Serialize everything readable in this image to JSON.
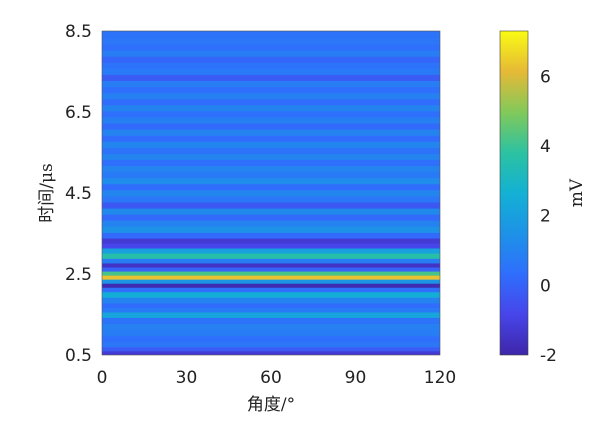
{
  "chart_data": {
    "type": "heatmap",
    "title": "",
    "xlabel": "角度/°",
    "ylabel": "时间/μs",
    "colorbar_label": "mV",
    "xlim": [
      0,
      120
    ],
    "ylim": [
      0.5,
      8.5
    ],
    "x_ticks": [
      "0",
      "30",
      "60",
      "90",
      "120"
    ],
    "x_tick_values": [
      0,
      30,
      60,
      90,
      120
    ],
    "y_ticks": [
      "0.5",
      "2.5",
      "4.5",
      "6.5",
      "8.5"
    ],
    "y_tick_values": [
      0.5,
      2.5,
      4.5,
      6.5,
      8.5
    ],
    "colorbar_ticks": [
      "-2",
      "0",
      "2",
      "4",
      "6"
    ],
    "colorbar_tick_values": [
      -2,
      0,
      2,
      4,
      6
    ],
    "colorbar_range": [
      -2,
      7.3
    ],
    "colormap": "parula",
    "grid": false,
    "bands": [
      {
        "t": 0.55,
        "mv": -1.2
      },
      {
        "t": 0.65,
        "mv": -0.2
      },
      {
        "t": 0.75,
        "mv": 0.6
      },
      {
        "t": 0.9,
        "mv": 0.4
      },
      {
        "t": 1.05,
        "mv": 0.8
      },
      {
        "t": 1.2,
        "mv": 0.9
      },
      {
        "t": 1.35,
        "mv": 0.5
      },
      {
        "t": 1.5,
        "mv": 2.2
      },
      {
        "t": 1.62,
        "mv": 0.7
      },
      {
        "t": 1.72,
        "mv": 0.3
      },
      {
        "t": 1.85,
        "mv": 1.0
      },
      {
        "t": 2.0,
        "mv": 2.5
      },
      {
        "t": 2.12,
        "mv": 0.4
      },
      {
        "t": 2.22,
        "mv": -1.8
      },
      {
        "t": 2.32,
        "mv": 1.6
      },
      {
        "t": 2.42,
        "mv": 6.3
      },
      {
        "t": 2.52,
        "mv": 4.2
      },
      {
        "t": 2.62,
        "mv": 0.0
      },
      {
        "t": 2.72,
        "mv": -1.5
      },
      {
        "t": 2.82,
        "mv": 0.8
      },
      {
        "t": 2.95,
        "mv": 3.6
      },
      {
        "t": 3.08,
        "mv": 2.0
      },
      {
        "t": 3.2,
        "mv": -0.8
      },
      {
        "t": 3.32,
        "mv": -1.2
      },
      {
        "t": 3.45,
        "mv": 0.2
      },
      {
        "t": 3.6,
        "mv": 1.5
      },
      {
        "t": 3.75,
        "mv": 1.0
      },
      {
        "t": 3.9,
        "mv": 0.2
      },
      {
        "t": 4.05,
        "mv": 1.2
      },
      {
        "t": 4.2,
        "mv": -0.3
      },
      {
        "t": 4.35,
        "mv": 0.6
      },
      {
        "t": 4.5,
        "mv": 1.1
      },
      {
        "t": 4.65,
        "mv": 0.3
      },
      {
        "t": 4.8,
        "mv": 1.3
      },
      {
        "t": 4.95,
        "mv": 0.7
      },
      {
        "t": 5.1,
        "mv": 1.0
      },
      {
        "t": 5.25,
        "mv": 0.4
      },
      {
        "t": 5.4,
        "mv": 1.0
      },
      {
        "t": 5.55,
        "mv": 0.5
      },
      {
        "t": 5.7,
        "mv": 1.1
      },
      {
        "t": 5.85,
        "mv": 0.3
      },
      {
        "t": 6.0,
        "mv": 1.0
      },
      {
        "t": 6.15,
        "mv": 0.2
      },
      {
        "t": 6.3,
        "mv": 0.9
      },
      {
        "t": 6.45,
        "mv": 0.4
      },
      {
        "t": 6.6,
        "mv": 1.0
      },
      {
        "t": 6.75,
        "mv": 0.3
      },
      {
        "t": 6.9,
        "mv": 0.9
      },
      {
        "t": 7.05,
        "mv": 0.4
      },
      {
        "t": 7.2,
        "mv": 0.8
      },
      {
        "t": 7.35,
        "mv": -0.2
      },
      {
        "t": 7.5,
        "mv": 0.7
      },
      {
        "t": 7.65,
        "mv": 0.5
      },
      {
        "t": 7.8,
        "mv": 0.1
      },
      {
        "t": 7.95,
        "mv": 0.8
      },
      {
        "t": 8.1,
        "mv": 0.4
      },
      {
        "t": 8.25,
        "mv": 0.6
      },
      {
        "t": 8.4,
        "mv": 0.5
      }
    ]
  }
}
